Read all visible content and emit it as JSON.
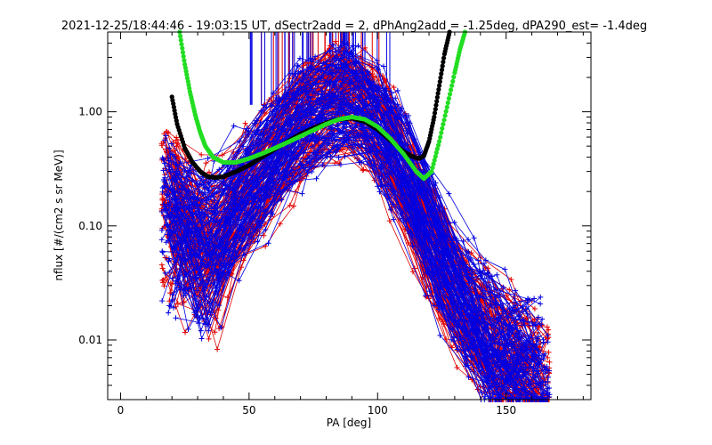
{
  "chart_data": {
    "type": "line",
    "title": "2021-12-25/18:44:46 - 19:03:15 UT, dSectr2add = 2, dPhAng2add = -1.25deg, dPA290_est=  -1.4deg",
    "xlabel": "PA [deg]",
    "ylabel": "nflux [#/(cm2 s sr MeV)]",
    "xlim": [
      -5,
      183
    ],
    "ylim": [
      0.003,
      5.0
    ],
    "y_scale": "log",
    "grid": false,
    "legend": "none",
    "x_ticks": [
      "0",
      "50",
      "100",
      "150"
    ],
    "y_ticks": [
      "0.01",
      "0.10",
      "1.00"
    ],
    "x_tick_values": [
      0,
      50,
      100,
      150
    ],
    "y_tick_values": [
      0.01,
      0.1,
      1.0
    ],
    "series": [
      {
        "color": "#e00000",
        "style": "thin line with plus markers",
        "count": 110,
        "description_values": {
          "representative_x": [
            16,
            20,
            25,
            30,
            35,
            40,
            45,
            50,
            55,
            60,
            65,
            70,
            75,
            80,
            85,
            90,
            95,
            100,
            105,
            110,
            115,
            120,
            125,
            130,
            135,
            140,
            145,
            150,
            155,
            160,
            165
          ],
          "representative_y": [
            0.6,
            0.45,
            0.3,
            0.2,
            0.18,
            0.2,
            0.25,
            0.32,
            0.4,
            0.5,
            0.6,
            0.72,
            0.82,
            0.9,
            0.95,
            0.9,
            0.78,
            0.6,
            0.42,
            0.28,
            0.17,
            0.1,
            0.06,
            0.04,
            0.03,
            0.025,
            0.02,
            0.02,
            0.018,
            0.015,
            0.012
          ]
        }
      },
      {
        "color": "#0000e0",
        "style": "thin line with plus markers",
        "count": 110,
        "description_values": {
          "representative_x": [
            16,
            20,
            25,
            30,
            35,
            40,
            45,
            50,
            55,
            60,
            65,
            70,
            75,
            80,
            85,
            90,
            95,
            100,
            105,
            110,
            115,
            120,
            125,
            130,
            135,
            140,
            145,
            150,
            155,
            160,
            165
          ],
          "representative_y": [
            0.5,
            0.4,
            0.3,
            0.22,
            0.2,
            0.22,
            0.28,
            0.36,
            0.45,
            0.55,
            0.65,
            0.75,
            0.85,
            0.92,
            0.95,
            0.92,
            0.82,
            0.65,
            0.48,
            0.33,
            0.2,
            0.12,
            0.07,
            0.05,
            0.035,
            0.03,
            0.025,
            0.022,
            0.02,
            0.017,
            0.014
          ]
        }
      },
      {
        "color": "#000000",
        "style": "thick dotted fit",
        "x": [
          20,
          22,
          25,
          28,
          31,
          34,
          37,
          40,
          45,
          50,
          55,
          60,
          65,
          70,
          75,
          80,
          85,
          90,
          95,
          100,
          105,
          110,
          113,
          116,
          118,
          120,
          122,
          124,
          126,
          128
        ],
        "y": [
          1.35,
          0.78,
          0.48,
          0.36,
          0.3,
          0.27,
          0.265,
          0.27,
          0.3,
          0.34,
          0.4,
          0.47,
          0.55,
          0.64,
          0.72,
          0.8,
          0.86,
          0.88,
          0.82,
          0.7,
          0.56,
          0.45,
          0.41,
          0.39,
          0.41,
          0.55,
          0.9,
          1.7,
          3.2,
          5.0
        ]
      },
      {
        "color": "#22dd22",
        "style": "thick dotted fit",
        "x": [
          23,
          25,
          27,
          29,
          31,
          33,
          36,
          40,
          45,
          50,
          55,
          60,
          65,
          70,
          75,
          80,
          85,
          90,
          95,
          100,
          105,
          110,
          115,
          118,
          121,
          124,
          127,
          130,
          132,
          134
        ],
        "y": [
          5.0,
          2.6,
          1.5,
          0.95,
          0.66,
          0.5,
          0.4,
          0.36,
          0.36,
          0.39,
          0.43,
          0.48,
          0.54,
          0.61,
          0.69,
          0.78,
          0.86,
          0.9,
          0.86,
          0.74,
          0.58,
          0.43,
          0.3,
          0.26,
          0.3,
          0.55,
          1.1,
          2.2,
          3.5,
          5.0
        ]
      }
    ],
    "vertical_markers": {
      "colors": [
        "#0000e0",
        "#e00000"
      ],
      "x_range": [
        50,
        105
      ],
      "y_from": 1.15,
      "y_to": 5.0
    }
  }
}
